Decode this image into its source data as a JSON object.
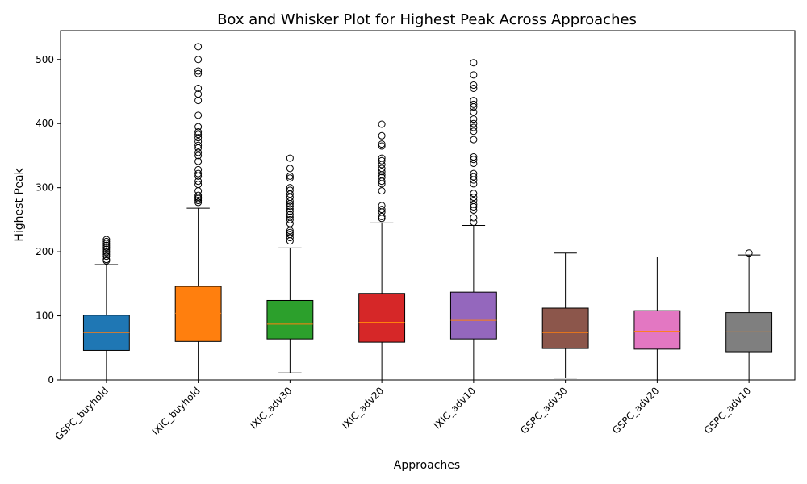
{
  "chart_data": {
    "type": "box",
    "title": "Box and Whisker Plot for Highest Peak Across Approaches",
    "xlabel": "Approaches",
    "ylabel": "Highest Peak",
    "ylim": [
      0,
      545
    ],
    "yticks": [
      0,
      100,
      200,
      300,
      400,
      500
    ],
    "grid": false,
    "legend": "none",
    "categories": [
      "GSPC_buyhold",
      "IXIC_buyhold",
      "IXIC_adv30",
      "IXIC_adv20",
      "IXIC_adv10",
      "GSPC_adv30",
      "GSPC_adv20",
      "GSPC_adv10"
    ],
    "colors": [
      "#1f77b4",
      "#ff7f0e",
      "#2ca02c",
      "#d62728",
      "#9467bd",
      "#8c564b",
      "#e377c2",
      "#7f7f7f"
    ],
    "median_color": "#ff7f0e",
    "boxes": [
      {
        "whisker_low": 0,
        "q1": 46,
        "median": 74,
        "q3": 101,
        "whisker_high": 180,
        "outliers": [
          186,
          188,
          193,
          196,
          199,
          201,
          204,
          207,
          210,
          213,
          216,
          219
        ]
      },
      {
        "whisker_low": 0,
        "q1": 60,
        "median": 104,
        "q3": 146,
        "whisker_high": 268,
        "outliers": [
          277,
          280,
          283,
          285,
          288,
          295,
          305,
          310,
          318,
          322,
          328,
          341,
          350,
          355,
          362,
          366,
          372,
          378,
          383,
          387,
          395,
          413,
          436,
          446,
          455,
          478,
          482,
          500,
          520
        ]
      },
      {
        "whisker_low": 11,
        "q1": 64,
        "median": 87,
        "q3": 124,
        "whisker_high": 206,
        "outliers": [
          217,
          222,
          227,
          230,
          233,
          244,
          250,
          254,
          258,
          263,
          267,
          271,
          275,
          279,
          285,
          290,
          296,
          300,
          315,
          318,
          330,
          346
        ]
      },
      {
        "whisker_low": 0,
        "q1": 59,
        "median": 90,
        "q3": 135,
        "whisker_high": 245,
        "outliers": [
          252,
          255,
          262,
          266,
          272,
          295,
          306,
          310,
          316,
          320,
          325,
          330,
          336,
          342,
          346,
          365,
          368,
          381,
          399
        ]
      },
      {
        "whisker_low": 0,
        "q1": 64,
        "median": 93,
        "q3": 137,
        "whisker_high": 241,
        "outliers": [
          246,
          253,
          265,
          270,
          274,
          280,
          285,
          291,
          306,
          312,
          317,
          322,
          338,
          344,
          348,
          375,
          388,
          394,
          400,
          407,
          418,
          426,
          430,
          436,
          455,
          460,
          476,
          495
        ]
      },
      {
        "whisker_low": 3,
        "q1": 49,
        "median": 74,
        "q3": 112,
        "whisker_high": 198,
        "outliers": []
      },
      {
        "whisker_low": 0,
        "q1": 48,
        "median": 76,
        "q3": 108,
        "whisker_high": 192,
        "outliers": []
      },
      {
        "whisker_low": 0,
        "q1": 44,
        "median": 75,
        "q3": 105,
        "whisker_high": 195,
        "outliers": [
          198
        ]
      }
    ]
  }
}
